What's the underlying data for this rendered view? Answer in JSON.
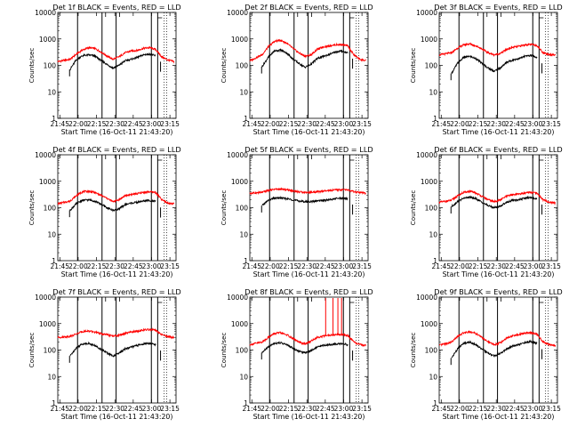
{
  "chart_data": {
    "type": "line",
    "layout": "3x3 grid",
    "ylabel": "Counts/sec",
    "xlabel": "Start Time (16-Oct-11 21:43:20)",
    "yscale": "log",
    "ylim": [
      1,
      10000
    ],
    "ytick_labels": [
      "1",
      "10",
      "100",
      "1000",
      "10000"
    ],
    "xlim": [
      "21:43:20",
      "23:20:00"
    ],
    "xtick_labels": [
      "21:45",
      "22:00",
      "22:15",
      "22:30",
      "22:45",
      "23:00",
      "23:15"
    ],
    "series_colors": {
      "events": "#000000",
      "lld": "#ff0000"
    },
    "vertical_markers": [
      "21:59:30",
      "22:19:30",
      "22:31:00",
      "22:59:50",
      "23:05:00"
    ],
    "panels": [
      {
        "title": "Det 1f BLACK = Events, RED = LLD",
        "lld_curve": [
          [
            0,
            140
          ],
          [
            10,
            170
          ],
          [
            15,
            260
          ],
          [
            20,
            380
          ],
          [
            25,
            460
          ],
          [
            30,
            440
          ],
          [
            35,
            330
          ],
          [
            40,
            230
          ],
          [
            45,
            170
          ],
          [
            50,
            210
          ],
          [
            55,
            300
          ],
          [
            60,
            350
          ],
          [
            65,
            370
          ],
          [
            70,
            440
          ],
          [
            75,
            470
          ],
          [
            80,
            400
          ],
          [
            85,
            210
          ],
          [
            90,
            160
          ],
          [
            95,
            140
          ]
        ],
        "events_curve": [
          [
            10,
            70
          ],
          [
            15,
            160
          ],
          [
            20,
            230
          ],
          [
            25,
            250
          ],
          [
            30,
            230
          ],
          [
            35,
            160
          ],
          [
            40,
            110
          ],
          [
            45,
            80
          ],
          [
            50,
            100
          ],
          [
            55,
            150
          ],
          [
            60,
            170
          ],
          [
            65,
            200
          ],
          [
            70,
            250
          ],
          [
            75,
            270
          ],
          [
            80,
            230
          ]
        ]
      },
      {
        "title": "Det 2f BLACK = Events, RED = LLD",
        "lld_curve": [
          [
            0,
            150
          ],
          [
            10,
            250
          ],
          [
            15,
            500
          ],
          [
            20,
            800
          ],
          [
            25,
            900
          ],
          [
            30,
            700
          ],
          [
            35,
            450
          ],
          [
            40,
            300
          ],
          [
            45,
            220
          ],
          [
            50,
            250
          ],
          [
            55,
            400
          ],
          [
            60,
            500
          ],
          [
            65,
            550
          ],
          [
            70,
            600
          ],
          [
            75,
            620
          ],
          [
            80,
            550
          ],
          [
            85,
            250
          ],
          [
            90,
            170
          ],
          [
            95,
            150
          ]
        ],
        "events_curve": [
          [
            10,
            90
          ],
          [
            15,
            200
          ],
          [
            20,
            350
          ],
          [
            25,
            380
          ],
          [
            30,
            300
          ],
          [
            35,
            180
          ],
          [
            40,
            120
          ],
          [
            45,
            85
          ],
          [
            50,
            110
          ],
          [
            55,
            180
          ],
          [
            60,
            220
          ],
          [
            65,
            260
          ],
          [
            70,
            320
          ],
          [
            75,
            350
          ],
          [
            80,
            300
          ]
        ]
      },
      {
        "title": "Det 3f BLACK = Events, RED = LLD",
        "lld_curve": [
          [
            0,
            250
          ],
          [
            10,
            300
          ],
          [
            15,
            450
          ],
          [
            20,
            600
          ],
          [
            25,
            650
          ],
          [
            30,
            550
          ],
          [
            35,
            420
          ],
          [
            40,
            300
          ],
          [
            45,
            250
          ],
          [
            50,
            280
          ],
          [
            55,
            400
          ],
          [
            60,
            480
          ],
          [
            65,
            520
          ],
          [
            70,
            600
          ],
          [
            75,
            620
          ],
          [
            80,
            560
          ],
          [
            85,
            300
          ],
          [
            90,
            260
          ],
          [
            95,
            250
          ]
        ],
        "events_curve": [
          [
            10,
            50
          ],
          [
            15,
            120
          ],
          [
            20,
            200
          ],
          [
            25,
            220
          ],
          [
            30,
            180
          ],
          [
            35,
            120
          ],
          [
            40,
            80
          ],
          [
            45,
            60
          ],
          [
            50,
            80
          ],
          [
            55,
            130
          ],
          [
            60,
            160
          ],
          [
            65,
            180
          ],
          [
            70,
            220
          ],
          [
            75,
            240
          ],
          [
            80,
            200
          ]
        ]
      },
      {
        "title": "Det 4f BLACK = Events, RED = LLD",
        "lld_curve": [
          [
            0,
            140
          ],
          [
            10,
            180
          ],
          [
            15,
            280
          ],
          [
            20,
            400
          ],
          [
            25,
            420
          ],
          [
            30,
            380
          ],
          [
            35,
            300
          ],
          [
            40,
            230
          ],
          [
            45,
            170
          ],
          [
            50,
            200
          ],
          [
            55,
            280
          ],
          [
            60,
            320
          ],
          [
            65,
            340
          ],
          [
            70,
            380
          ],
          [
            75,
            400
          ],
          [
            80,
            380
          ],
          [
            85,
            200
          ],
          [
            90,
            150
          ],
          [
            95,
            140
          ]
        ],
        "events_curve": [
          [
            10,
            80
          ],
          [
            15,
            140
          ],
          [
            20,
            190
          ],
          [
            25,
            200
          ],
          [
            30,
            180
          ],
          [
            35,
            140
          ],
          [
            40,
            100
          ],
          [
            45,
            80
          ],
          [
            50,
            90
          ],
          [
            55,
            130
          ],
          [
            60,
            150
          ],
          [
            65,
            160
          ],
          [
            70,
            180
          ],
          [
            75,
            190
          ],
          [
            80,
            170
          ]
        ]
      },
      {
        "title": "Det 5f BLACK = Events, RED = LLD",
        "lld_curve": [
          [
            0,
            350
          ],
          [
            10,
            380
          ],
          [
            15,
            450
          ],
          [
            20,
            500
          ],
          [
            25,
            500
          ],
          [
            30,
            480
          ],
          [
            35,
            440
          ],
          [
            40,
            400
          ],
          [
            45,
            380
          ],
          [
            50,
            380
          ],
          [
            55,
            400
          ],
          [
            60,
            420
          ],
          [
            65,
            440
          ],
          [
            70,
            470
          ],
          [
            75,
            480
          ],
          [
            80,
            470
          ],
          [
            85,
            400
          ],
          [
            90,
            370
          ],
          [
            95,
            350
          ]
        ],
        "events_curve": [
          [
            10,
            120
          ],
          [
            15,
            190
          ],
          [
            20,
            230
          ],
          [
            25,
            235
          ],
          [
            30,
            220
          ],
          [
            35,
            200
          ],
          [
            40,
            180
          ],
          [
            45,
            170
          ],
          [
            50,
            170
          ],
          [
            55,
            180
          ],
          [
            60,
            190
          ],
          [
            65,
            200
          ],
          [
            70,
            220
          ],
          [
            75,
            230
          ],
          [
            80,
            220
          ]
        ]
      },
      {
        "title": "Det 6f BLACK = Events, RED = LLD",
        "lld_curve": [
          [
            0,
            160
          ],
          [
            10,
            190
          ],
          [
            15,
            280
          ],
          [
            20,
            380
          ],
          [
            25,
            420
          ],
          [
            30,
            360
          ],
          [
            35,
            270
          ],
          [
            40,
            200
          ],
          [
            45,
            170
          ],
          [
            50,
            200
          ],
          [
            55,
            270
          ],
          [
            60,
            310
          ],
          [
            65,
            330
          ],
          [
            70,
            360
          ],
          [
            75,
            380
          ],
          [
            80,
            350
          ],
          [
            85,
            200
          ],
          [
            90,
            160
          ],
          [
            95,
            150
          ]
        ],
        "events_curve": [
          [
            10,
            110
          ],
          [
            15,
            170
          ],
          [
            20,
            230
          ],
          [
            25,
            250
          ],
          [
            30,
            220
          ],
          [
            35,
            160
          ],
          [
            40,
            120
          ],
          [
            45,
            100
          ],
          [
            50,
            115
          ],
          [
            55,
            160
          ],
          [
            60,
            190
          ],
          [
            65,
            200
          ],
          [
            70,
            230
          ],
          [
            75,
            240
          ],
          [
            80,
            220
          ]
        ]
      },
      {
        "title": "Det 7f BLACK = Events, RED = LLD",
        "lld_curve": [
          [
            0,
            300
          ],
          [
            10,
            330
          ],
          [
            15,
            400
          ],
          [
            20,
            500
          ],
          [
            25,
            520
          ],
          [
            30,
            480
          ],
          [
            35,
            420
          ],
          [
            40,
            380
          ],
          [
            45,
            340
          ],
          [
            50,
            360
          ],
          [
            55,
            420
          ],
          [
            60,
            480
          ],
          [
            65,
            520
          ],
          [
            70,
            570
          ],
          [
            75,
            600
          ],
          [
            80,
            560
          ],
          [
            85,
            380
          ],
          [
            90,
            320
          ],
          [
            95,
            300
          ]
        ],
        "events_curve": [
          [
            10,
            60
          ],
          [
            15,
            120
          ],
          [
            20,
            170
          ],
          [
            25,
            180
          ],
          [
            30,
            150
          ],
          [
            35,
            110
          ],
          [
            40,
            80
          ],
          [
            45,
            60
          ],
          [
            50,
            75
          ],
          [
            55,
            110
          ],
          [
            60,
            130
          ],
          [
            65,
            150
          ],
          [
            70,
            170
          ],
          [
            75,
            180
          ],
          [
            80,
            160
          ]
        ]
      },
      {
        "title": "Det 8f BLACK = Events, RED = LLD",
        "lld_curve": [
          [
            0,
            160
          ],
          [
            10,
            200
          ],
          [
            15,
            300
          ],
          [
            20,
            420
          ],
          [
            25,
            450
          ],
          [
            30,
            380
          ],
          [
            35,
            280
          ],
          [
            40,
            200
          ],
          [
            45,
            170
          ],
          [
            50,
            220
          ],
          [
            55,
            300
          ],
          [
            60,
            340
          ],
          [
            65,
            360
          ],
          [
            70,
            380
          ],
          [
            75,
            390
          ],
          [
            80,
            360
          ],
          [
            85,
            200
          ],
          [
            90,
            160
          ],
          [
            95,
            150
          ]
        ],
        "events_curve": [
          [
            10,
            80
          ],
          [
            15,
            130
          ],
          [
            20,
            180
          ],
          [
            25,
            190
          ],
          [
            30,
            160
          ],
          [
            35,
            120
          ],
          [
            40,
            90
          ],
          [
            45,
            80
          ],
          [
            50,
            95
          ],
          [
            55,
            130
          ],
          [
            60,
            150
          ],
          [
            65,
            160
          ],
          [
            70,
            170
          ],
          [
            75,
            175
          ],
          [
            80,
            160
          ]
        ],
        "lld_spikes": [
          [
            62,
            10000
          ],
          [
            68,
            10000
          ],
          [
            72,
            10000
          ],
          [
            75,
            10000
          ]
        ]
      },
      {
        "title": "Det 9f BLACK = Events, RED = LLD",
        "lld_curve": [
          [
            0,
            150
          ],
          [
            10,
            200
          ],
          [
            15,
            320
          ],
          [
            20,
            450
          ],
          [
            25,
            500
          ],
          [
            30,
            420
          ],
          [
            35,
            300
          ],
          [
            40,
            200
          ],
          [
            45,
            160
          ],
          [
            50,
            190
          ],
          [
            55,
            280
          ],
          [
            60,
            340
          ],
          [
            65,
            380
          ],
          [
            70,
            440
          ],
          [
            75,
            460
          ],
          [
            80,
            400
          ],
          [
            85,
            200
          ],
          [
            90,
            160
          ],
          [
            95,
            150
          ]
        ],
        "events_curve": [
          [
            10,
            50
          ],
          [
            15,
            110
          ],
          [
            20,
            180
          ],
          [
            25,
            200
          ],
          [
            30,
            160
          ],
          [
            35,
            110
          ],
          [
            40,
            75
          ],
          [
            45,
            60
          ],
          [
            50,
            75
          ],
          [
            55,
            110
          ],
          [
            60,
            140
          ],
          [
            65,
            160
          ],
          [
            70,
            190
          ],
          [
            75,
            210
          ],
          [
            80,
            180
          ]
        ]
      }
    ]
  }
}
